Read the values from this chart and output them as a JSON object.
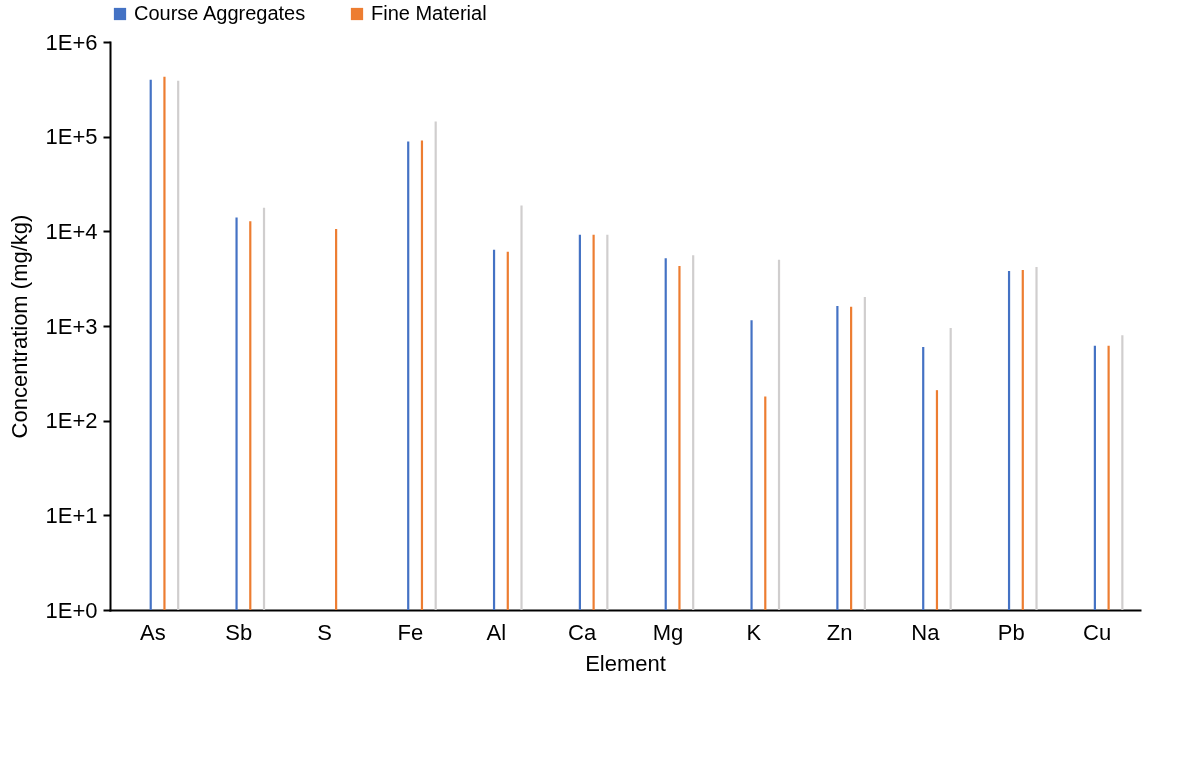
{
  "chart_data": {
    "type": "bar",
    "xlabel": "Element",
    "ylabel": "Concentratiom (mg/kg)",
    "categories": [
      "As",
      "Sb",
      "S",
      "Fe",
      "Al",
      "Ca",
      "Mg",
      "K",
      "Zn",
      "Na",
      "Pb",
      "Cu"
    ],
    "series": [
      {
        "name": "Course Aggregates",
        "color": "#4472c4",
        "values": [
          400000,
          14000,
          null,
          89000,
          6400,
          9200,
          5200,
          1150,
          1630,
          600,
          3800,
          620
        ]
      },
      {
        "name": "Fine Material",
        "color": "#ed7d31",
        "values": [
          430000,
          12800,
          10600,
          91000,
          6100,
          9200,
          4300,
          180,
          1600,
          210,
          3900,
          620
        ]
      },
      {
        "color": "#d0cece",
        "values": [
          390000,
          17800,
          null,
          145000,
          18800,
          9200,
          5600,
          5000,
          2030,
          950,
          4200,
          800
        ]
      }
    ],
    "log": true,
    "ylim": [
      1,
      1000000
    ],
    "yticks": [
      {
        "value": 1,
        "label": "1E+0"
      },
      {
        "value": 10,
        "label": "1E+1"
      },
      {
        "value": 100,
        "label": "1E+2"
      },
      {
        "value": 1000,
        "label": "1E+3"
      },
      {
        "value": 10000,
        "label": "1E+4"
      },
      {
        "value": 100000,
        "label": "1E+5"
      },
      {
        "value": 1000000,
        "label": "1E+6"
      }
    ],
    "grid": false,
    "legend": "top"
  }
}
